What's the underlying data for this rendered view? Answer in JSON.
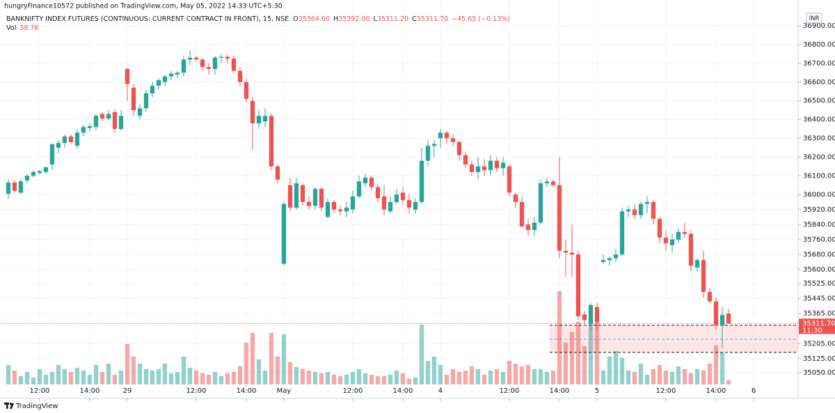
{
  "header": {
    "published": "hungryFinance10572 published on TradingView.com, May 05, 2022 14:33 UTC+5:30",
    "symbol": "BANKNIFTY INDEX FUTURES (CONTINUOUS: CURRENT CONTRACT IN FRONT), 15, NSE",
    "ohlc": [
      {
        "key": "O",
        "value": "35364.60"
      },
      {
        "key": "H",
        "value": "35392.00"
      },
      {
        "key": "L",
        "value": "35311.20"
      },
      {
        "key": "C",
        "value": "35311.70"
      }
    ],
    "change": "−45.65 (−0.13%)",
    "volume_name": "Vol",
    "volume_value": "38.7K",
    "currency": "INR",
    "last_price_label": "35311.70",
    "countdown": "11:30",
    "footer": "TradingView"
  },
  "chart_data": {
    "type": "candlestick",
    "up_color": "#26a69a",
    "down_color": "#ef5350",
    "volume_opacity": 0.5,
    "grid": true,
    "ylim": [
      34983,
      36982
    ],
    "yticks": [
      {
        "value": 36900,
        "label": "36900.00"
      },
      {
        "value": 36800,
        "label": "36800.00"
      },
      {
        "value": 36700,
        "label": "36700.00"
      },
      {
        "value": 36600,
        "label": "36600.00"
      },
      {
        "value": 36500,
        "label": "36500.00"
      },
      {
        "value": 36400,
        "label": "36400.00"
      },
      {
        "value": 36300,
        "label": "36300.00"
      },
      {
        "value": 36200,
        "label": "36200.00"
      },
      {
        "value": 36100,
        "label": "36100.00"
      },
      {
        "value": 36000,
        "label": "36000.00"
      },
      {
        "value": 35920,
        "label": "35920.00"
      },
      {
        "value": 35840,
        "label": "35840.00"
      },
      {
        "value": 35760,
        "label": "35760.00"
      },
      {
        "value": 35680,
        "label": "35680.00"
      },
      {
        "value": 35600,
        "label": "35600.00"
      },
      {
        "value": 35525,
        "label": "35525.00"
      },
      {
        "value": 35445,
        "label": "35445.00"
      },
      {
        "value": 35365,
        "label": "35365.00"
      },
      {
        "value": 35205,
        "label": "35205.00"
      },
      {
        "value": 35125,
        "label": "35125.00"
      },
      {
        "value": 35050,
        "label": "35050.00"
      }
    ],
    "xlim": [
      -1.33,
      126.11
    ],
    "xticks": [
      {
        "value": 5,
        "label": "12:00"
      },
      {
        "value": 13,
        "label": "14:00"
      },
      {
        "value": 19,
        "label": "29"
      },
      {
        "value": 30,
        "label": "12:00"
      },
      {
        "value": 38,
        "label": "14:00"
      },
      {
        "value": 44,
        "label": "May"
      },
      {
        "value": 55,
        "label": "12:00"
      },
      {
        "value": 63,
        "label": "14:00"
      },
      {
        "value": 69,
        "label": "4"
      },
      {
        "value": 80,
        "label": "12:00"
      },
      {
        "value": 88,
        "label": "14:00"
      },
      {
        "value": 94,
        "label": "5"
      },
      {
        "value": 105,
        "label": "12:00"
      },
      {
        "value": 113,
        "label": "14:00"
      },
      {
        "value": 119,
        "label": "6"
      }
    ],
    "vlim": [
      0,
      1000000
    ],
    "open": [
      36004,
      36064,
      36010,
      36075,
      36100,
      36115,
      36120,
      36160,
      36250,
      36275,
      36310,
      36260,
      36330,
      36355,
      36360,
      36430,
      36405,
      36440,
      36350,
      36670,
      36570,
      36420,
      36460,
      36540,
      36580,
      36600,
      36630,
      36640,
      36650,
      36720,
      36730,
      36720,
      36680,
      36670,
      36730,
      36735,
      36725,
      36660,
      36600,
      36500,
      36380,
      36390,
      36420,
      36150,
      35630,
      36050,
      35930,
      36050,
      35960,
      35940,
      36030,
      35880,
      35960,
      35920,
      35910,
      35920,
      35990,
      36060,
      36090,
      36040,
      35990,
      35910,
      35960,
      36010,
      35970,
      35920,
      35960,
      36180,
      36260,
      36300,
      36330,
      36300,
      36280,
      36210,
      36160,
      36120,
      36150,
      36130,
      36180,
      36140,
      36150,
      36000,
      35960,
      35840,
      35810,
      35850,
      36060,
      36070,
      36050,
      35700,
      35690,
      35680,
      35360,
      35310,
      35400,
      35640,
      35650,
      35660,
      35680,
      35910,
      35920,
      35890,
      35950,
      35960,
      35870,
      35770,
      35730,
      35760,
      35800,
      35790,
      35610,
      35650,
      35480,
      35430,
      35300,
      35364.6
    ],
    "high": [
      36079,
      36080,
      36085,
      36110,
      36130,
      36130,
      36150,
      36275,
      36290,
      36320,
      36320,
      36350,
      36370,
      36380,
      36430,
      36440,
      36450,
      36455,
      36450,
      36675,
      36590,
      36480,
      36560,
      36600,
      36620,
      36640,
      36660,
      36660,
      36740,
      36770,
      36740,
      36730,
      36700,
      36740,
      36750,
      36745,
      36740,
      36680,
      36620,
      36520,
      36450,
      36460,
      36430,
      36160,
      35960,
      36090,
      36090,
      36060,
      35990,
      36040,
      36040,
      35980,
      35970,
      35940,
      35960,
      36020,
      36100,
      36110,
      36100,
      36060,
      36050,
      35990,
      36030,
      36040,
      36000,
      35980,
      36250,
      36290,
      36290,
      36350,
      36340,
      36320,
      36290,
      36230,
      36180,
      36200,
      36190,
      36210,
      36200,
      36200,
      36160,
      36010,
      35990,
      35870,
      35880,
      36080,
      36090,
      36080,
      36200,
      35760,
      35840,
      35700,
      35380,
      35420,
      35420,
      35680,
      35670,
      35710,
      35930,
      35940,
      35950,
      35960,
      35990,
      35970,
      35880,
      35810,
      35790,
      35820,
      35850,
      35810,
      35660,
      35700,
      35500,
      35450,
      35400,
      35392
    ],
    "low": [
      35978,
      36010,
      36000,
      36060,
      36090,
      36105,
      36110,
      36130,
      36220,
      36250,
      36270,
      36245,
      36310,
      36340,
      36345,
      36390,
      36395,
      36330,
      36340,
      36500,
      36420,
      36400,
      36440,
      36520,
      36560,
      36580,
      36610,
      36620,
      36630,
      36690,
      36710,
      36660,
      36640,
      36640,
      36700,
      36700,
      36650,
      36580,
      36490,
      36240,
      36350,
      36360,
      36130,
      36060,
      35620,
      35910,
      35920,
      35940,
      35920,
      35920,
      35910,
      35870,
      35900,
      35890,
      35880,
      35900,
      35980,
      36040,
      36020,
      35960,
      35890,
      35900,
      35950,
      35950,
      35900,
      35900,
      35950,
      36150,
      36200,
      36250,
      36270,
      36260,
      36180,
      36140,
      36100,
      36080,
      36100,
      36100,
      36120,
      36100,
      35990,
      35930,
      35820,
      35780,
      35780,
      35840,
      36040,
      36040,
      35660,
      35560,
      35560,
      35330,
      35310,
      35270,
      35280,
      35630,
      35620,
      35640,
      35670,
      35880,
      35870,
      35870,
      35900,
      35840,
      35740,
      35700,
      35690,
      35740,
      35770,
      35590,
      35590,
      35450,
      35420,
      35280,
      35180,
      35311.2
    ],
    "close": [
      36064,
      36020,
      36070,
      36100,
      36120,
      36125,
      36145,
      36268,
      36275,
      36310,
      36280,
      36330,
      36360,
      36365,
      36420,
      36405,
      36430,
      36350,
      36420,
      36590,
      36450,
      36460,
      36540,
      36580,
      36610,
      36630,
      36645,
      36650,
      36720,
      36730,
      36720,
      36680,
      36670,
      36730,
      36735,
      36725,
      36660,
      36600,
      36510,
      36380,
      36420,
      36420,
      36150,
      36080,
      35950,
      35930,
      36060,
      35960,
      35940,
      36030,
      35930,
      35960,
      35920,
      35910,
      35930,
      35990,
      36070,
      36090,
      36040,
      35980,
      35920,
      35960,
      36000,
      35970,
      35930,
      35960,
      36180,
      36260,
      36270,
      36330,
      36300,
      36280,
      36210,
      36160,
      36120,
      36150,
      36130,
      36180,
      36140,
      36170,
      36010,
      35960,
      35830,
      35810,
      35850,
      36060,
      36070,
      36050,
      35700,
      35690,
      35680,
      35350,
      35330,
      35410,
      35320,
      35650,
      35660,
      35680,
      35910,
      35920,
      35890,
      35950,
      35960,
      35870,
      35770,
      35740,
      35760,
      35800,
      35790,
      35620,
      35650,
      35480,
      35430,
      35300,
      35357.35,
      35311.7
    ],
    "volume": [
      182000,
      130000,
      78000,
      117000,
      65000,
      143000,
      91000,
      117000,
      182000,
      143000,
      117000,
      156000,
      130000,
      91000,
      182000,
      117000,
      195000,
      91000,
      130000,
      377000,
      260000,
      195000,
      143000,
      130000,
      143000,
      195000,
      104000,
      117000,
      260000,
      156000,
      130000,
      104000,
      91000,
      117000,
      78000,
      104000,
      117000,
      169000,
      390000,
      481000,
      234000,
      130000,
      481000,
      260000,
      468000,
      208000,
      162500,
      143000,
      130000,
      117000,
      104000,
      117000,
      91000,
      78000,
      91000,
      117000,
      143000,
      104000,
      91000,
      78000,
      78000,
      91000,
      130000,
      104000,
      52000,
      65000,
      559000,
      221000,
      260000,
      182000,
      91000,
      143000,
      117000,
      130000,
      169000,
      143000,
      91000,
      130000,
      143000,
      117000,
      221000,
      195000,
      169000,
      182000,
      143000,
      143000,
      117000,
      130000,
      871000,
      390000,
      487500,
      585000,
      357500,
      585000,
      624000,
      130000,
      260000,
      312000,
      247000,
      130000,
      117000,
      195000,
      91000,
      143000,
      182000,
      130000,
      117000,
      169000,
      143000,
      104000,
      143000,
      130000,
      195000,
      364000,
      299000,
      38700
    ]
  }
}
